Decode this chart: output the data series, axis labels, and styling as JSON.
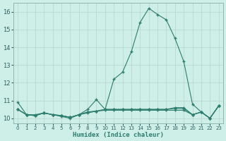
{
  "x": [
    0,
    1,
    2,
    3,
    4,
    5,
    6,
    7,
    8,
    9,
    10,
    11,
    12,
    13,
    14,
    15,
    16,
    17,
    18,
    19,
    20,
    21,
    22,
    23
  ],
  "y_main": [
    10.9,
    10.2,
    10.2,
    10.3,
    10.2,
    10.1,
    10.0,
    10.2,
    10.5,
    11.05,
    10.5,
    12.2,
    12.6,
    13.75,
    15.4,
    16.2,
    15.85,
    15.55,
    14.5,
    13.2,
    10.8,
    10.35,
    10.0,
    10.7
  ],
  "y_flat1": [
    10.5,
    10.2,
    10.15,
    10.3,
    10.2,
    10.15,
    10.05,
    10.2,
    10.35,
    10.4,
    10.45,
    10.45,
    10.45,
    10.45,
    10.45,
    10.45,
    10.45,
    10.45,
    10.45,
    10.45,
    10.2,
    10.35,
    10.0,
    10.7
  ],
  "y_flat2": [
    10.5,
    10.2,
    10.15,
    10.3,
    10.2,
    10.15,
    10.05,
    10.2,
    10.35,
    10.4,
    10.5,
    10.5,
    10.5,
    10.5,
    10.5,
    10.5,
    10.5,
    10.5,
    10.55,
    10.55,
    10.2,
    10.35,
    10.0,
    10.7
  ],
  "y_flat3": [
    10.5,
    10.2,
    10.15,
    10.3,
    10.2,
    10.15,
    10.05,
    10.2,
    10.3,
    10.4,
    10.5,
    10.5,
    10.5,
    10.5,
    10.5,
    10.5,
    10.5,
    10.5,
    10.6,
    10.6,
    10.2,
    10.35,
    10.0,
    10.7
  ],
  "line_color": "#2d7d6e",
  "bg_color": "#ceeee8",
  "grid_color": "#b8d8d0",
  "xlabel": "Humidex (Indice chaleur)",
  "ylim": [
    9.7,
    16.5
  ],
  "xlim": [
    -0.5,
    23.5
  ],
  "yticks": [
    10,
    11,
    12,
    13,
    14,
    15,
    16
  ],
  "xticks": [
    0,
    1,
    2,
    3,
    4,
    5,
    6,
    7,
    8,
    9,
    10,
    11,
    12,
    13,
    14,
    15,
    16,
    17,
    18,
    19,
    20,
    21,
    22,
    23
  ]
}
